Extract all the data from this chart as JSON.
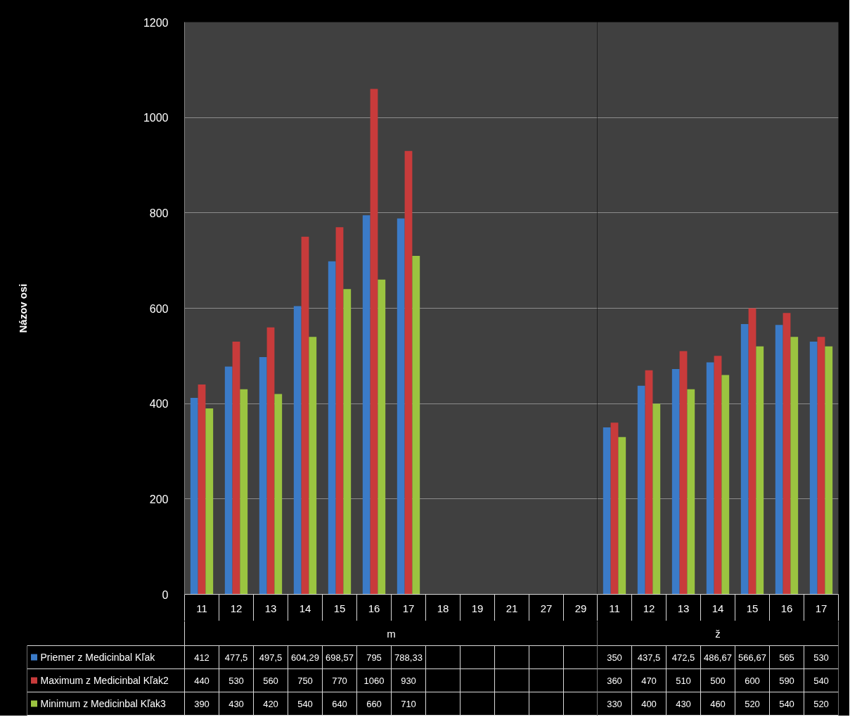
{
  "chart_data": [
    {
      "type": "bar",
      "xlabel": "m",
      "ylabel": "Názov osi",
      "categories": [
        "11",
        "12",
        "13",
        "14",
        "15",
        "16",
        "17",
        "18",
        "19",
        "21",
        "27",
        "29"
      ],
      "ylim": [
        0,
        1200
      ],
      "yticks": [
        0,
        200,
        400,
        600,
        800,
        1000,
        1200
      ],
      "grid": "y",
      "legend": "bottom",
      "series": [
        {
          "name": "Priemer z Medicinbal Kľak",
          "color": "#3b7bc8",
          "values": [
            412,
            477.5,
            497.5,
            604.29,
            698.57,
            795,
            788.33,
            null,
            null,
            null,
            null,
            null
          ],
          "value_labels": [
            "412",
            "477,5",
            "497,5",
            "604,29",
            "698,57",
            "795",
            "788,33",
            null,
            null,
            null,
            null,
            null
          ]
        },
        {
          "name": "Maximum z Medicinbal Kľak2",
          "color": "#c83b3b",
          "values": [
            440,
            530,
            560,
            750,
            770,
            1060,
            930,
            null,
            null,
            null,
            null,
            null
          ],
          "value_labels": [
            "440",
            "530",
            "560",
            "750",
            "770",
            "1060",
            "930",
            null,
            null,
            null,
            null,
            null
          ]
        },
        {
          "name": "Minimum z Medicinbal Kľak3",
          "color": "#9bc440",
          "values": [
            390,
            430,
            420,
            540,
            640,
            660,
            710,
            null,
            null,
            null,
            null,
            null
          ],
          "value_labels": [
            "390",
            "430",
            "420",
            "540",
            "640",
            "660",
            "710",
            null,
            null,
            null,
            null,
            null
          ]
        }
      ]
    },
    {
      "type": "bar",
      "xlabel": "ž",
      "categories": [
        "11",
        "12",
        "13",
        "14",
        "15",
        "16",
        "17"
      ],
      "ylim": [
        0,
        1200
      ],
      "yticks": [
        0,
        200,
        400,
        600,
        800,
        1000,
        1200
      ],
      "tick_labels": "x",
      "grid": "y",
      "series": [
        {
          "color": "#3b7bc8",
          "values": [
            350,
            437.5,
            472.5,
            486.67,
            566.67,
            565,
            530
          ],
          "value_labels": [
            "350",
            "437,5",
            "472,5",
            "486,67",
            "566,67",
            "565",
            "530"
          ]
        },
        {
          "color": "#c83b3b",
          "values": [
            360,
            470,
            510,
            500,
            600,
            590,
            540
          ],
          "value_labels": [
            "360",
            "470",
            "510",
            "500",
            "600",
            "590",
            "540"
          ]
        },
        {
          "color": "#9bc440",
          "values": [
            330,
            400,
            430,
            460,
            520,
            540,
            520
          ],
          "value_labels": [
            "330",
            "400",
            "430",
            "460",
            "520",
            "540",
            "520"
          ]
        }
      ]
    }
  ]
}
